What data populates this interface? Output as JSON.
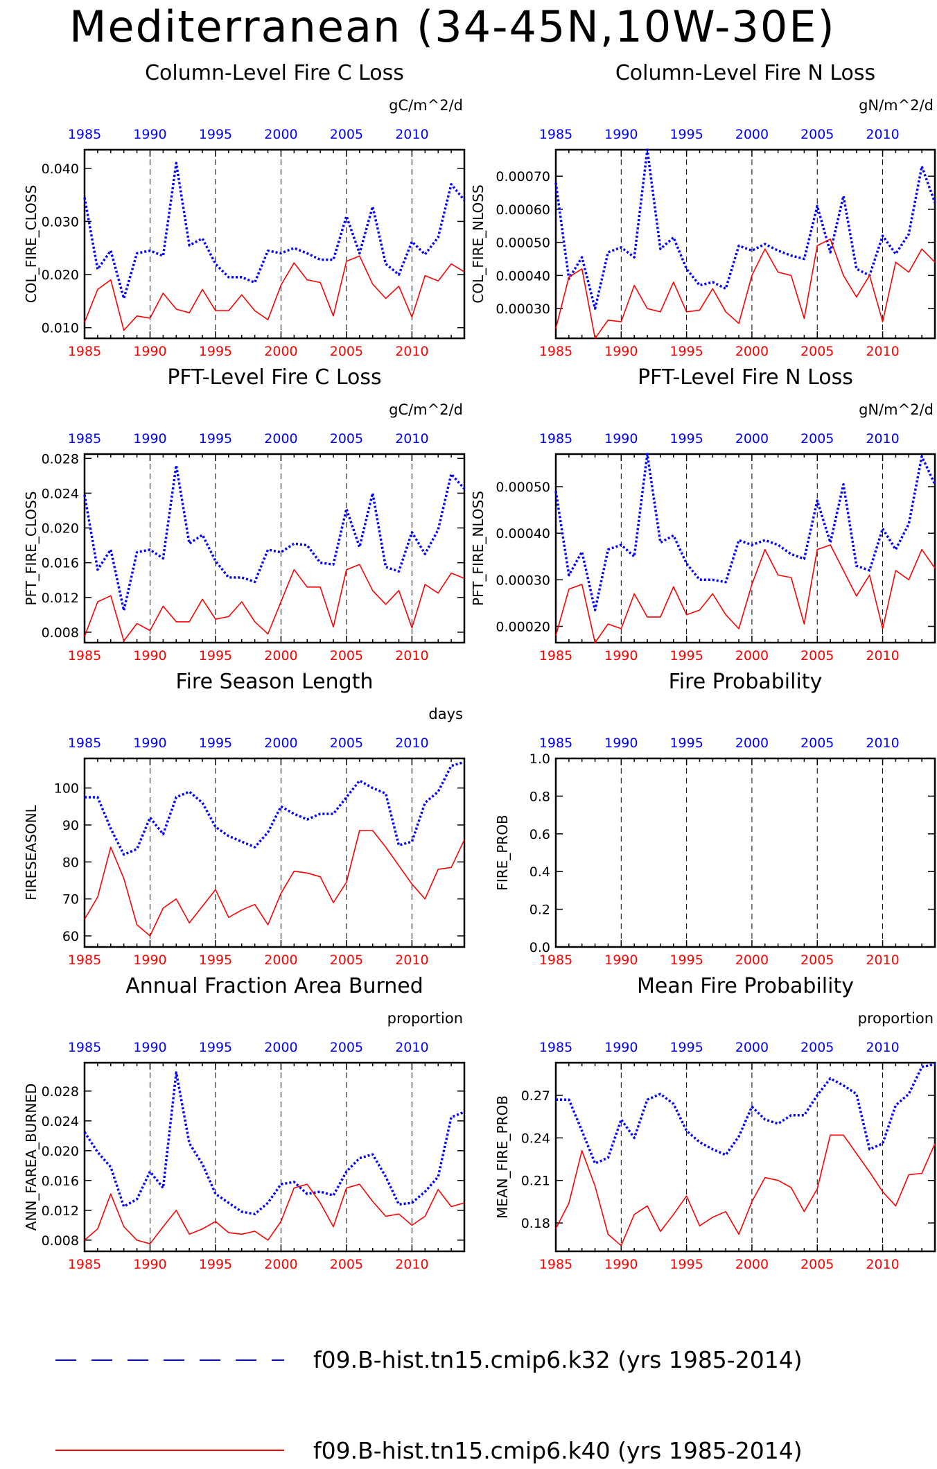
{
  "page": {
    "title": "Mediterranean (34-45N,10W-30E)"
  },
  "colors": {
    "series1": "#0000ff",
    "series2": "#ff0000",
    "axis": "#000000"
  },
  "legend": [
    {
      "label": "f09.B-hist.tn15.cmip6.k32 (yrs 1985-2014)",
      "color": "#0000ff",
      "style": "dashed"
    },
    {
      "label": "f09.B-hist.tn15.cmip6.k40 (yrs 1985-2014)",
      "color": "#ff0000",
      "style": "solid"
    }
  ],
  "chart_data": [
    {
      "type": "line",
      "title": "Column-Level Fire C Loss",
      "units": "gC/m^2/d",
      "ylabel": "COL_FIRE_CLOSS",
      "xlim": [
        1985,
        2014
      ],
      "ylim": [
        0.008,
        0.0435
      ],
      "yticks": [
        0.01,
        0.02,
        0.03,
        0.04
      ],
      "ytick_labels": [
        "0.010",
        "0.020",
        "0.030",
        "0.040"
      ],
      "xticks": [
        1985,
        1990,
        1995,
        2000,
        2005,
        2010
      ],
      "series": [
        {
          "values": [
            0.0345,
            0.021,
            0.0245,
            0.0155,
            0.024,
            0.0245,
            0.0235,
            0.041,
            0.0255,
            0.0268,
            0.022,
            0.0195,
            0.0195,
            0.0185,
            0.0245,
            0.024,
            0.025,
            0.024,
            0.0228,
            0.0228,
            0.031,
            0.024,
            0.0328,
            0.022,
            0.02,
            0.0262,
            0.0238,
            0.027,
            0.037,
            0.034
          ]
        },
        {
          "values": [
            0.011,
            0.0172,
            0.019,
            0.0095,
            0.0122,
            0.0118,
            0.0165,
            0.0135,
            0.0128,
            0.0172,
            0.0132,
            0.0132,
            0.0162,
            0.0132,
            0.0115,
            0.018,
            0.0222,
            0.019,
            0.0185,
            0.0122,
            0.0225,
            0.0235,
            0.0182,
            0.0155,
            0.0178,
            0.012,
            0.0198,
            0.0188,
            0.022,
            0.0205
          ]
        }
      ]
    },
    {
      "type": "line",
      "title": "Column-Level Fire N Loss",
      "units": "gN/m^2/d",
      "ylabel": "COL_FIRE_NLOSS",
      "xlim": [
        1985,
        2014
      ],
      "ylim": [
        0.00021,
        0.00078
      ],
      "yticks": [
        0.0003,
        0.0004,
        0.0005,
        0.0006,
        0.0007
      ],
      "ytick_labels": [
        "0.00030",
        "0.00040",
        "0.00050",
        "0.00060",
        "0.00070"
      ],
      "xticks": [
        1985,
        1990,
        1995,
        2000,
        2005,
        2010
      ],
      "series": [
        {
          "values": [
            0.00068,
            0.00039,
            0.000455,
            0.0003,
            0.00047,
            0.000485,
            0.000455,
            0.00078,
            0.00048,
            0.000515,
            0.00042,
            0.00037,
            0.00038,
            0.00036,
            0.00049,
            0.000475,
            0.000495,
            0.000475,
            0.00046,
            0.00045,
            0.00061,
            0.00047,
            0.00064,
            0.00042,
            0.0004,
            0.00052,
            0.000465,
            0.000525,
            0.00073,
            0.00062
          ]
        },
        {
          "values": [
            0.00024,
            0.000395,
            0.00042,
            0.00021,
            0.000265,
            0.00026,
            0.00037,
            0.0003,
            0.00029,
            0.00038,
            0.00029,
            0.000295,
            0.00036,
            0.00029,
            0.000255,
            0.0004,
            0.00048,
            0.00041,
            0.0004,
            0.00027,
            0.00049,
            0.00051,
            0.0004,
            0.000335,
            0.0004,
            0.00026,
            0.00044,
            0.00041,
            0.00048,
            0.00044
          ]
        }
      ]
    },
    {
      "type": "line",
      "title": "PFT-Level Fire C Loss",
      "units": "gC/m^2/d",
      "ylabel": "PFT_FIRE_CLOSS",
      "xlim": [
        1985,
        2014
      ],
      "ylim": [
        0.0068,
        0.0285
      ],
      "yticks": [
        0.008,
        0.012,
        0.016,
        0.02,
        0.024,
        0.028
      ],
      "ytick_labels": [
        "0.008",
        "0.012",
        "0.016",
        "0.020",
        "0.024",
        "0.028"
      ],
      "xticks": [
        1985,
        1990,
        1995,
        2000,
        2005,
        2010
      ],
      "series": [
        {
          "values": [
            0.0238,
            0.0152,
            0.0175,
            0.0105,
            0.0172,
            0.0175,
            0.0165,
            0.0272,
            0.0182,
            0.0192,
            0.0162,
            0.0143,
            0.0143,
            0.0138,
            0.0175,
            0.0172,
            0.0182,
            0.018,
            0.016,
            0.0158,
            0.0222,
            0.0178,
            0.024,
            0.0155,
            0.015,
            0.0195,
            0.017,
            0.0198,
            0.0262,
            0.0245
          ]
        },
        {
          "values": [
            0.0075,
            0.0115,
            0.0122,
            0.007,
            0.009,
            0.0082,
            0.011,
            0.0092,
            0.0092,
            0.0118,
            0.0095,
            0.0098,
            0.0115,
            0.0092,
            0.0078,
            0.0115,
            0.0152,
            0.0132,
            0.0132,
            0.0086,
            0.0152,
            0.0158,
            0.0128,
            0.0112,
            0.0128,
            0.0085,
            0.0135,
            0.0125,
            0.0148,
            0.0142
          ]
        }
      ]
    },
    {
      "type": "line",
      "title": "PFT-Level Fire N Loss",
      "units": "gN/m^2/d",
      "ylabel": "PFT_FIRE_NLOSS",
      "xlim": [
        1985,
        2014
      ],
      "ylim": [
        0.000165,
        0.00057
      ],
      "yticks": [
        0.0002,
        0.0003,
        0.0004,
        0.0005
      ],
      "ytick_labels": [
        "0.00020",
        "0.00030",
        "0.00040",
        "0.00050"
      ],
      "xticks": [
        1985,
        1990,
        1995,
        2000,
        2005,
        2010
      ],
      "series": [
        {
          "values": [
            0.00049,
            0.00031,
            0.00036,
            0.000235,
            0.000365,
            0.000375,
            0.00035,
            0.00057,
            0.00038,
            0.000395,
            0.000335,
            0.0003,
            0.0003,
            0.000295,
            0.000385,
            0.000375,
            0.000385,
            0.000375,
            0.000355,
            0.000345,
            0.00047,
            0.00038,
            0.000505,
            0.00033,
            0.00032,
            0.00041,
            0.000365,
            0.00042,
            0.000565,
            0.000505
          ]
        },
        {
          "values": [
            0.00018,
            0.00028,
            0.00029,
            0.000165,
            0.000205,
            0.000195,
            0.00027,
            0.00022,
            0.00022,
            0.000285,
            0.000225,
            0.000235,
            0.00027,
            0.000225,
            0.000195,
            0.00029,
            0.000365,
            0.00031,
            0.000305,
            0.000205,
            0.000365,
            0.000375,
            0.00032,
            0.000265,
            0.00031,
            0.000195,
            0.00032,
            0.0003,
            0.000365,
            0.000325
          ]
        }
      ]
    },
    {
      "type": "line",
      "title": "Fire Season Length",
      "units": "days",
      "ylabel": "FIRESEASONL",
      "xlim": [
        1985,
        2014
      ],
      "ylim": [
        57,
        108
      ],
      "yticks": [
        60,
        70,
        80,
        90,
        100
      ],
      "ytick_labels": [
        "60",
        "70",
        "80",
        "90",
        "100"
      ],
      "xticks": [
        1985,
        1990,
        1995,
        2000,
        2005,
        2010
      ],
      "series": [
        {
          "values": [
            97.5,
            97.5,
            89,
            82,
            83.5,
            92,
            87.5,
            97.5,
            99,
            96,
            89.5,
            87,
            85.5,
            84,
            88,
            95,
            93,
            91.5,
            93,
            93,
            97.5,
            102,
            100,
            98.5,
            84.5,
            85.5,
            96,
            99,
            106,
            107
          ]
        },
        {
          "values": [
            64.5,
            70.5,
            84,
            75.5,
            63,
            60,
            67.5,
            70,
            63.5,
            68,
            72.5,
            65,
            67,
            68.5,
            63,
            71.5,
            77.5,
            77,
            76,
            69,
            74.5,
            88.5,
            88.5,
            84,
            79,
            74,
            70,
            78,
            78.5,
            86
          ]
        }
      ]
    },
    {
      "type": "line",
      "title": "Fire Probability",
      "units": "",
      "ylabel": "FIRE_PROB",
      "xlim": [
        1985,
        2014
      ],
      "ylim": [
        0.0,
        1.0
      ],
      "yticks": [
        0.0,
        0.2,
        0.4,
        0.6,
        0.8,
        1.0
      ],
      "ytick_labels": [
        "0.0",
        "0.2",
        "0.4",
        "0.6",
        "0.8",
        "1.0"
      ],
      "xticks": [
        1985,
        1990,
        1995,
        2000,
        2005,
        2010
      ],
      "series": [
        {
          "values": []
        },
        {
          "values": []
        }
      ]
    },
    {
      "type": "line",
      "title": "Annual Fraction Area Burned",
      "units": "proportion",
      "ylabel": "ANN_FAREA_BURNED",
      "xlim": [
        1985,
        2014
      ],
      "ylim": [
        0.0065,
        0.0318
      ],
      "yticks": [
        0.008,
        0.012,
        0.016,
        0.02,
        0.024,
        0.028
      ],
      "ytick_labels": [
        "0.008",
        "0.012",
        "0.016",
        "0.020",
        "0.024",
        "0.028"
      ],
      "xticks": [
        1985,
        1990,
        1995,
        2000,
        2005,
        2010
      ],
      "series": [
        {
          "values": [
            0.0225,
            0.0198,
            0.0178,
            0.0125,
            0.0135,
            0.0172,
            0.015,
            0.0305,
            0.021,
            0.0182,
            0.0142,
            0.013,
            0.0118,
            0.0115,
            0.013,
            0.0155,
            0.0158,
            0.0142,
            0.0145,
            0.014,
            0.0172,
            0.019,
            0.0195,
            0.0165,
            0.0128,
            0.013,
            0.0145,
            0.0165,
            0.0245,
            0.0252
          ]
        },
        {
          "values": [
            0.008,
            0.0095,
            0.0142,
            0.0098,
            0.008,
            0.0075,
            0.0098,
            0.012,
            0.0088,
            0.0095,
            0.0105,
            0.009,
            0.0088,
            0.0092,
            0.008,
            0.0105,
            0.015,
            0.0155,
            0.013,
            0.0098,
            0.015,
            0.0155,
            0.0132,
            0.0112,
            0.0115,
            0.01,
            0.0112,
            0.0148,
            0.0125,
            0.013
          ]
        }
      ]
    },
    {
      "type": "line",
      "title": "Mean Fire Probability",
      "units": "proportion",
      "ylabel": "MEAN_FIRE_PROB",
      "xlim": [
        1985,
        2014
      ],
      "ylim": [
        0.16,
        0.293
      ],
      "yticks": [
        0.18,
        0.21,
        0.24,
        0.27
      ],
      "ytick_labels": [
        "0.18",
        "0.21",
        "0.24",
        "0.27"
      ],
      "xticks": [
        1985,
        1990,
        1995,
        2000,
        2005,
        2010
      ],
      "series": [
        {
          "values": [
            0.267,
            0.267,
            0.245,
            0.222,
            0.226,
            0.253,
            0.24,
            0.267,
            0.271,
            0.264,
            0.245,
            0.237,
            0.232,
            0.228,
            0.241,
            0.262,
            0.253,
            0.25,
            0.256,
            0.256,
            0.27,
            0.282,
            0.277,
            0.271,
            0.232,
            0.236,
            0.263,
            0.271,
            0.29,
            0.292
          ]
        },
        {
          "values": [
            0.176,
            0.194,
            0.231,
            0.206,
            0.172,
            0.164,
            0.186,
            0.192,
            0.174,
            0.186,
            0.199,
            0.178,
            0.184,
            0.188,
            0.172,
            0.195,
            0.212,
            0.21,
            0.205,
            0.188,
            0.204,
            0.242,
            0.242,
            0.229,
            0.216,
            0.202,
            0.192,
            0.214,
            0.215,
            0.236
          ]
        }
      ]
    }
  ]
}
